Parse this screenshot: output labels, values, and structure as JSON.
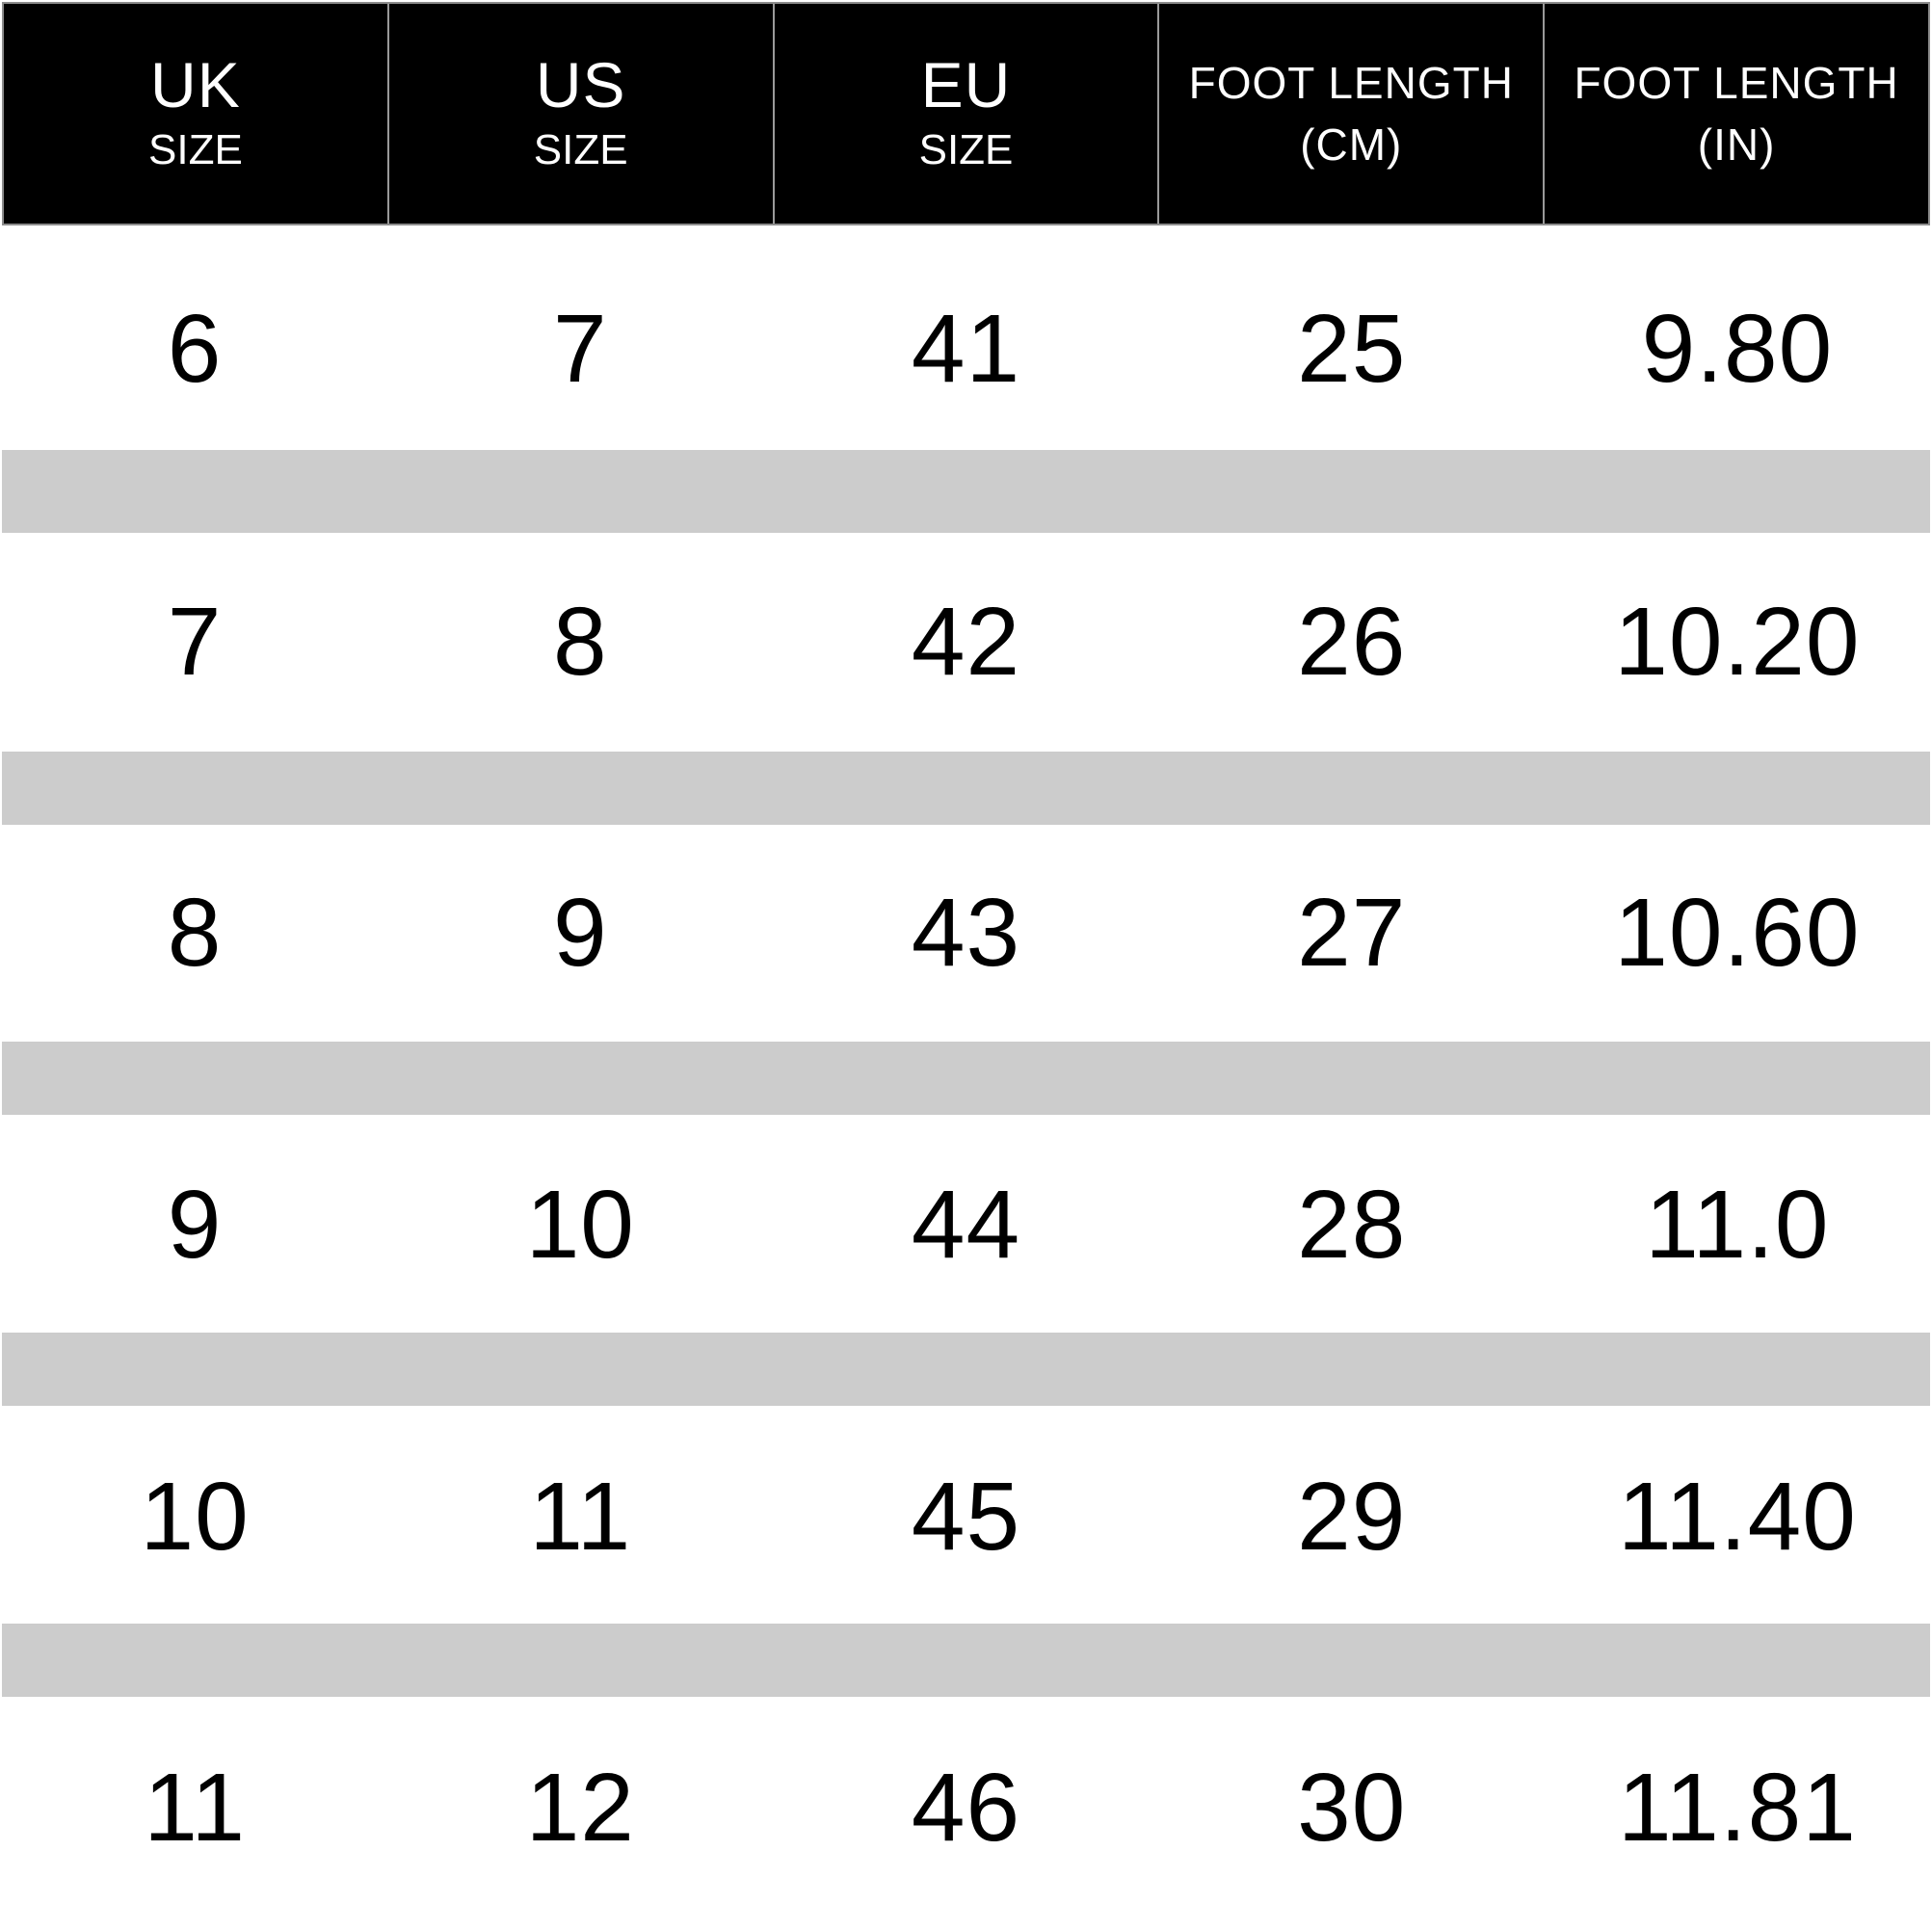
{
  "size_chart": {
    "columns": [
      {
        "main": "UK",
        "sub": "SIZE"
      },
      {
        "main": "US",
        "sub": "SIZE"
      },
      {
        "main": "EU",
        "sub": "SIZE"
      },
      {
        "main": "FOOT LENGTH",
        "sub": "(CM)"
      },
      {
        "main": "FOOT LENGTH",
        "sub": "(IN)"
      }
    ],
    "rows": [
      {
        "uk": "6",
        "us": "7",
        "eu": "41",
        "cm": "25",
        "in": "9.80"
      },
      {
        "uk": "7",
        "us": "8",
        "eu": "42",
        "cm": "26",
        "in": "10.20"
      },
      {
        "uk": "8",
        "us": "9",
        "eu": "43",
        "cm": "27",
        "in": "10.60"
      },
      {
        "uk": "9",
        "us": "10",
        "eu": "44",
        "cm": "28",
        "in": "11.0"
      },
      {
        "uk": "10",
        "us": "11",
        "eu": "45",
        "cm": "29",
        "in": "11.40"
      },
      {
        "uk": "11",
        "us": "12",
        "eu": "46",
        "cm": "30",
        "in": "11.81"
      }
    ],
    "colors": {
      "header_bg": "#000000",
      "header_text": "#ffffff",
      "separator": "#cccccc",
      "body_text": "#000000"
    }
  }
}
